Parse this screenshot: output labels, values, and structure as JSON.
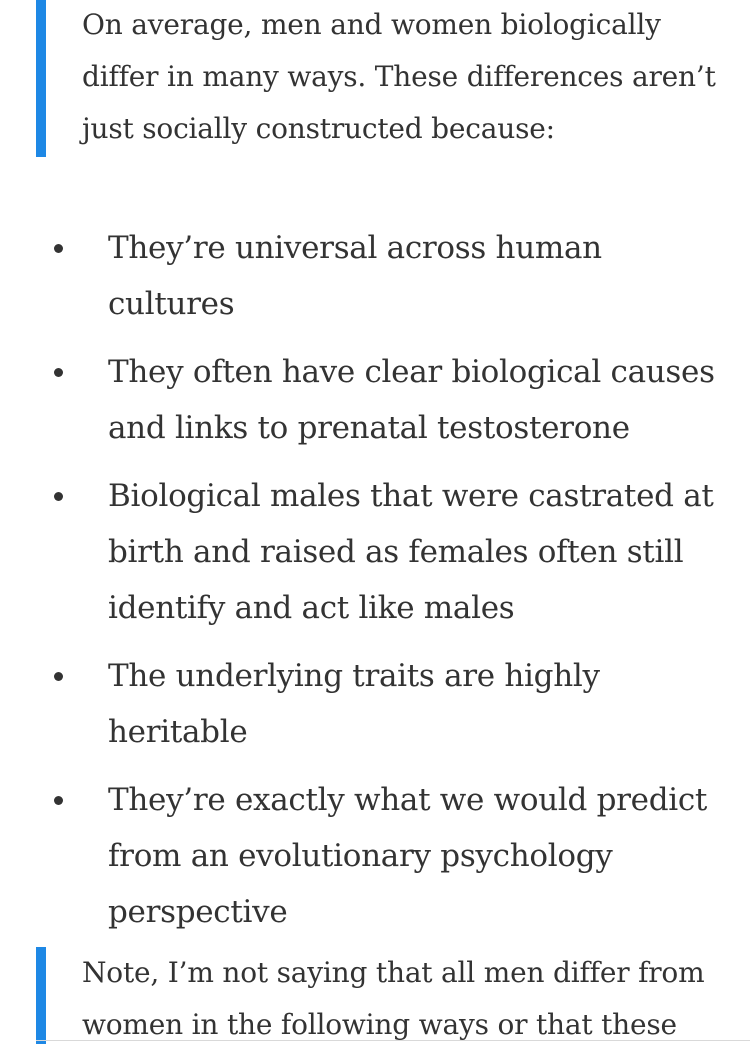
{
  "intro_quote": {
    "text": "On average, men and women biologically differ in many ways. These differences aren’t just socially constructed because:"
  },
  "reasons": [
    {
      "text": "They’re universal across human cultures"
    },
    {
      "text": "They often have clear biological causes and links to prenatal testosterone"
    },
    {
      "text": "Biological males that were castrated at birth and raised as females often still identify and act like males"
    },
    {
      "text": "The underlying traits are highly heritable"
    },
    {
      "text": "They’re exactly what we would predict from an evolutionary psychology perspective"
    }
  ],
  "note_quote": {
    "text": "Note, I’m not saying that all men differ from women in the following ways or that these"
  },
  "colors": {
    "accent_bar": "#1e88e5",
    "text": "#333333"
  }
}
